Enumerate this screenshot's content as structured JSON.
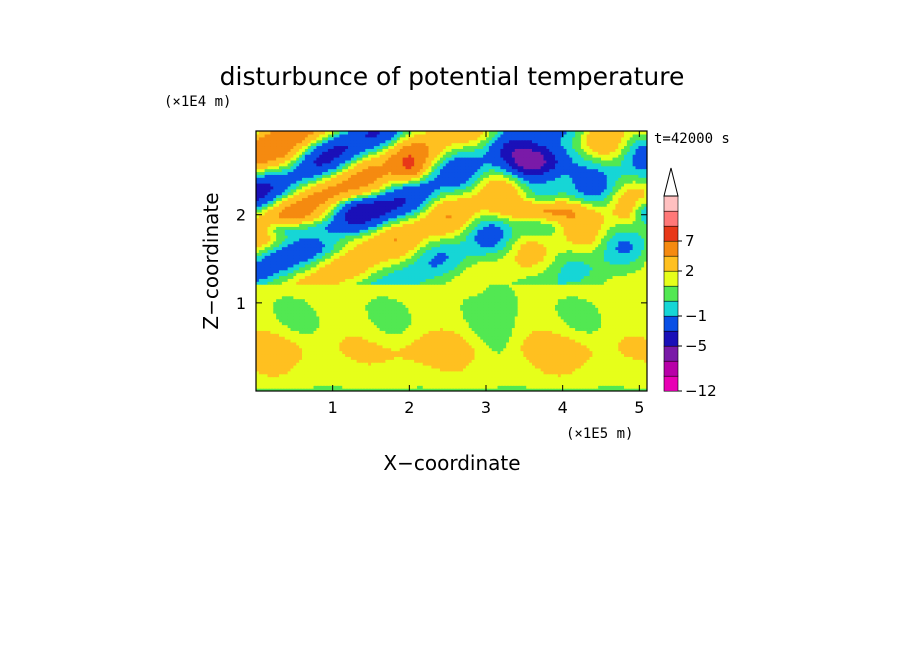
{
  "chart_data": {
    "type": "heatmap",
    "title": "disturbunce of potential temperature",
    "time_label": "t=42000 s",
    "xlabel": "X−coordinate",
    "ylabel": "Z−coordinate",
    "x_unit": "(×1E5 m)",
    "y_unit": "(×1E4 m)",
    "xlim": [
      0,
      5.1
    ],
    "ylim": [
      0,
      2.95
    ],
    "xticks": [
      1,
      2,
      3,
      4,
      5
    ],
    "yticks": [
      1,
      2
    ],
    "xtick_labels": [
      "1",
      "2",
      "3",
      "4",
      "5"
    ],
    "ytick_labels": [
      "1",
      "2"
    ],
    "colorbar": {
      "levels": [
        -12,
        -10,
        -8,
        -5,
        -3,
        -1,
        0,
        1,
        2,
        4,
        7,
        9,
        11
      ],
      "tick_labels": [
        {
          "value": -12,
          "text": "−12"
        },
        {
          "value": -5,
          "text": "−5"
        },
        {
          "value": -1,
          "text": "−1"
        },
        {
          "value": 2,
          "text": "2"
        },
        {
          "value": 7,
          "text": "7"
        }
      ],
      "colors": [
        "#e800b4",
        "#b800a8",
        "#7a1aa8",
        "#1a10b8",
        "#0a50e6",
        "#16d6d6",
        "#52e852",
        "#e6ff1a",
        "#ffc020",
        "#f58a10",
        "#e83818",
        "#ff7878",
        "#ffc0c0"
      ],
      "extend": "max"
    },
    "field_description": {
      "lower_layer_0_to_1.2": "mostly 1 to 4 (orange bands near z=0.3-0.6), 0 to 1 above",
      "upper_layer_1.2_to_2.9": "wave pattern between -5 and 9",
      "minimum_region": {
        "x": [
          3.3,
          4.1
        ],
        "z": [
          2.4,
          2.8
        ],
        "min": -10
      },
      "maximum_regions": [
        {
          "x": 2.0,
          "z": 2.55,
          "max": 8
        },
        {
          "x": 0.4,
          "z": 2.5,
          "max": 8
        },
        {
          "x": 3.7,
          "z": 2.05,
          "max": 7
        }
      ]
    }
  }
}
